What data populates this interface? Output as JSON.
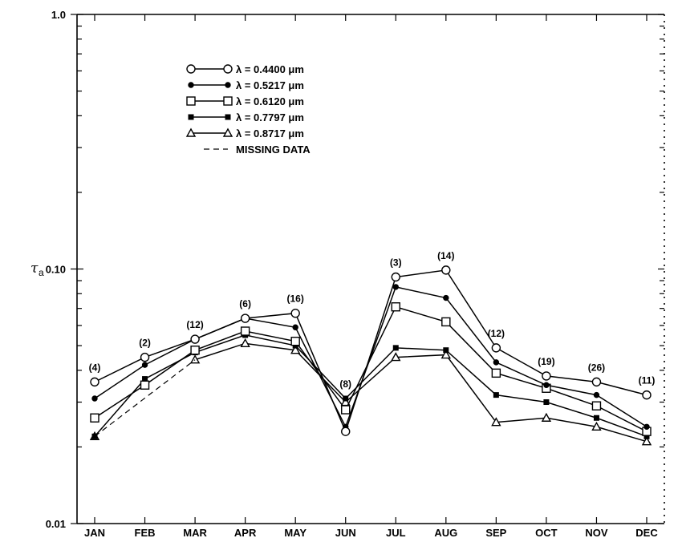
{
  "chart_data": {
    "type": "line",
    "title": "",
    "xlabel": "",
    "ylabel": {
      "symbol": "τ",
      "subscript": "a"
    },
    "y_scale": "log",
    "ylim": [
      0.01,
      1.0
    ],
    "y_tick_labels": [
      "1.0",
      "0.10",
      "0.01"
    ],
    "categories": [
      "JAN",
      "FEB",
      "MAR",
      "APR",
      "MAY",
      "JUN",
      "JUL",
      "AUG",
      "SEP",
      "OCT",
      "NOV",
      "DEC"
    ],
    "sample_counts": [
      "(4)",
      "(2)",
      "(12)",
      "(6)",
      "(16)",
      "(8)",
      "(3)",
      "(14)",
      "(12)",
      "(19)",
      "(26)",
      "(11)"
    ],
    "grid": false,
    "legend_position": "top-left",
    "series": [
      {
        "name": "λ = 0.4400 μm",
        "marker": "open-circle",
        "values": [
          0.036,
          0.045,
          0.053,
          0.064,
          0.067,
          0.023,
          0.093,
          0.099,
          0.049,
          0.038,
          0.036,
          0.032
        ]
      },
      {
        "name": "λ = 0.5217 μm",
        "marker": "filled-circle",
        "values": [
          0.031,
          0.042,
          0.053,
          0.064,
          0.059,
          0.024,
          0.085,
          0.077,
          0.043,
          0.035,
          0.032,
          0.024
        ]
      },
      {
        "name": "λ = 0.6120 μm",
        "marker": "open-square",
        "values": [
          0.026,
          0.035,
          0.048,
          0.057,
          0.052,
          0.028,
          0.071,
          0.062,
          0.039,
          0.034,
          0.029,
          0.023
        ]
      },
      {
        "name": "λ = 0.7797 μm",
        "marker": "filled-square",
        "values": [
          0.022,
          0.037,
          0.047,
          0.055,
          0.05,
          0.031,
          0.049,
          0.048,
          0.032,
          0.03,
          0.026,
          0.022
        ]
      },
      {
        "name": "λ = 0.8717 μm",
        "marker": "open-triangle",
        "values": [
          0.022,
          null,
          0.044,
          0.051,
          0.048,
          0.03,
          0.045,
          0.046,
          0.025,
          0.026,
          0.024,
          0.021
        ]
      }
    ],
    "missing_data_label": "MISSING DATA",
    "missing_data_segment": {
      "series_index": 4,
      "from_category": "JAN",
      "to_category": "MAR"
    }
  }
}
